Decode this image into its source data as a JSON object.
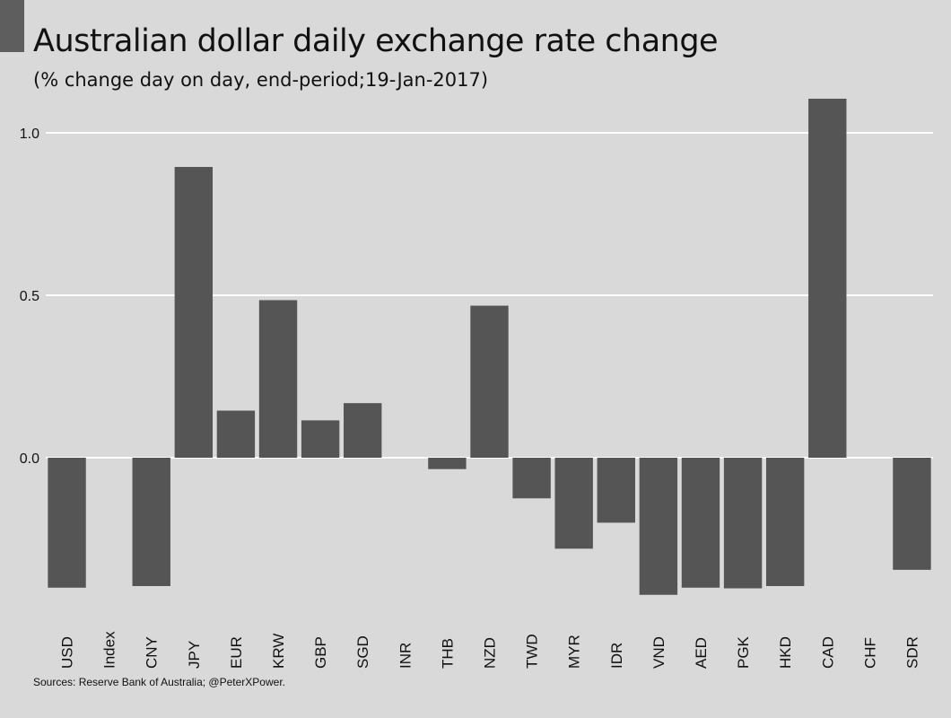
{
  "title": "Australian dollar daily exchange rate change",
  "subtitle": "(% change day on day, end-period;19-Jan-2017)",
  "caption": "Sources: Reserve Bank of Australia;  @PeterXPower.",
  "colors": {
    "background": "#d9d9d9",
    "bar": "#555555",
    "grid": "#ffffff",
    "text": "#111111"
  },
  "chart_data": {
    "type": "bar",
    "categories": [
      "USD",
      "Index",
      "CNY",
      "JPY",
      "EUR",
      "KRW",
      "GBP",
      "SGD",
      "INR",
      "THB",
      "NZD",
      "TWD",
      "MYR",
      "IDR",
      "VND",
      "AED",
      "PGK",
      "HKD",
      "CAD",
      "CHF",
      "SDR"
    ],
    "values": [
      -0.4,
      null,
      -0.395,
      0.895,
      0.145,
      0.485,
      0.115,
      0.168,
      null,
      -0.035,
      0.468,
      -0.125,
      -0.28,
      -0.2,
      -0.422,
      -0.4,
      -0.402,
      -0.395,
      1.105,
      null,
      -0.345
    ],
    "title": "Australian dollar daily exchange rate change",
    "xlabel": "",
    "ylabel": "",
    "yticks": [
      0.0,
      0.5,
      1.0
    ],
    "ytick_labels": [
      "0.0",
      "0.5",
      "1.0"
    ],
    "ylim": [
      -0.45,
      1.16
    ],
    "grid": "horizontal",
    "legend": "none"
  }
}
